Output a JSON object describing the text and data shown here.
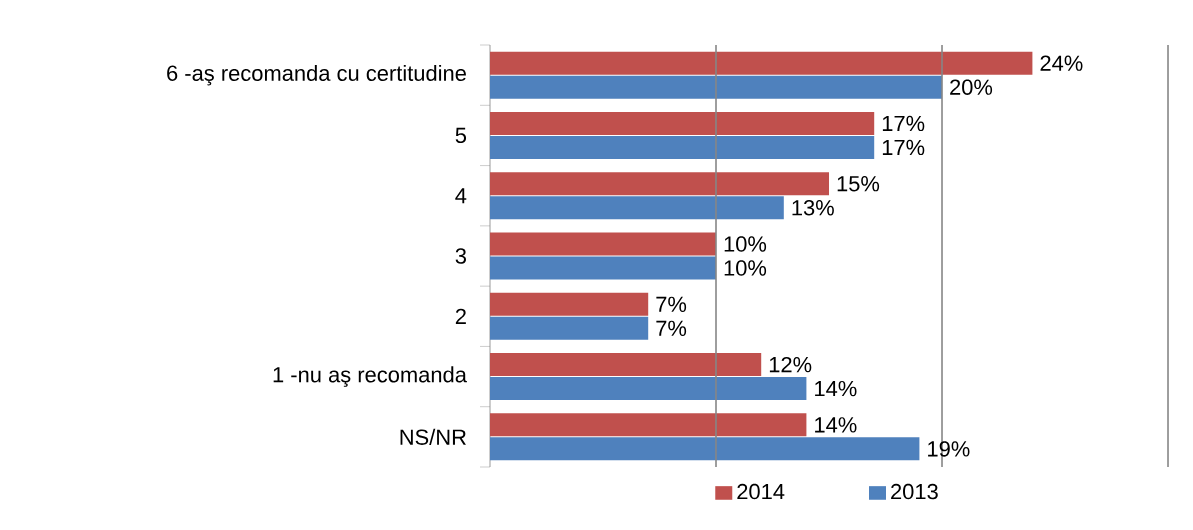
{
  "chart_data": {
    "type": "bar",
    "orientation": "horizontal",
    "categories": [
      "6 -aş recomanda cu certitudine",
      "5",
      "4",
      "3",
      "2",
      "1 -nu aş recomanda",
      "NS/NR"
    ],
    "series": [
      {
        "name": "2014",
        "color": "#c0504d",
        "values": [
          24,
          17,
          15,
          10,
          7,
          12,
          14
        ],
        "value_labels": [
          "24%",
          "17%",
          "15%",
          "10%",
          "7%",
          "12%",
          "14%"
        ]
      },
      {
        "name": "2013",
        "color": "#4f81bd",
        "values": [
          20,
          17,
          13,
          10,
          7,
          14,
          19
        ],
        "value_labels": [
          "20%",
          "17%",
          "13%",
          "10%",
          "7%",
          "14%",
          "19%"
        ]
      }
    ],
    "xlim": [
      0,
      30
    ],
    "ref_lines": [
      {
        "axis": "x",
        "value": 10,
        "color": "#868686"
      },
      {
        "axis": "x",
        "value": 20,
        "color": "#868686"
      },
      {
        "axis": "x",
        "value": 30,
        "color": "#868686"
      }
    ],
    "legend": "bottom",
    "tick_labels": "y"
  }
}
